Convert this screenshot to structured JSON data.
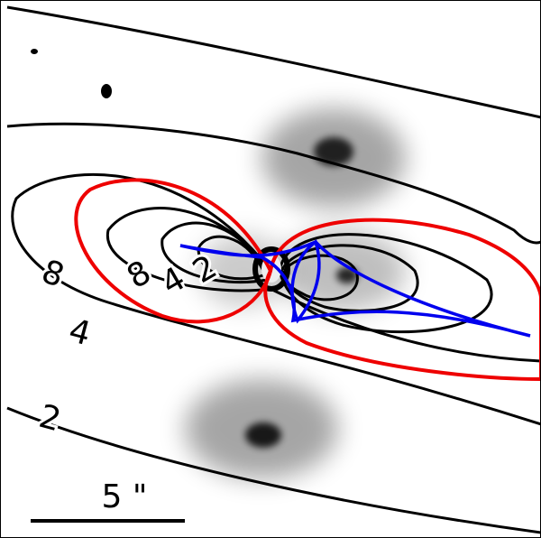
{
  "contour_labels": [
    "8",
    "4",
    "2",
    "8",
    "4",
    "2"
  ],
  "scale_bar": {
    "label": "5 \""
  }
}
